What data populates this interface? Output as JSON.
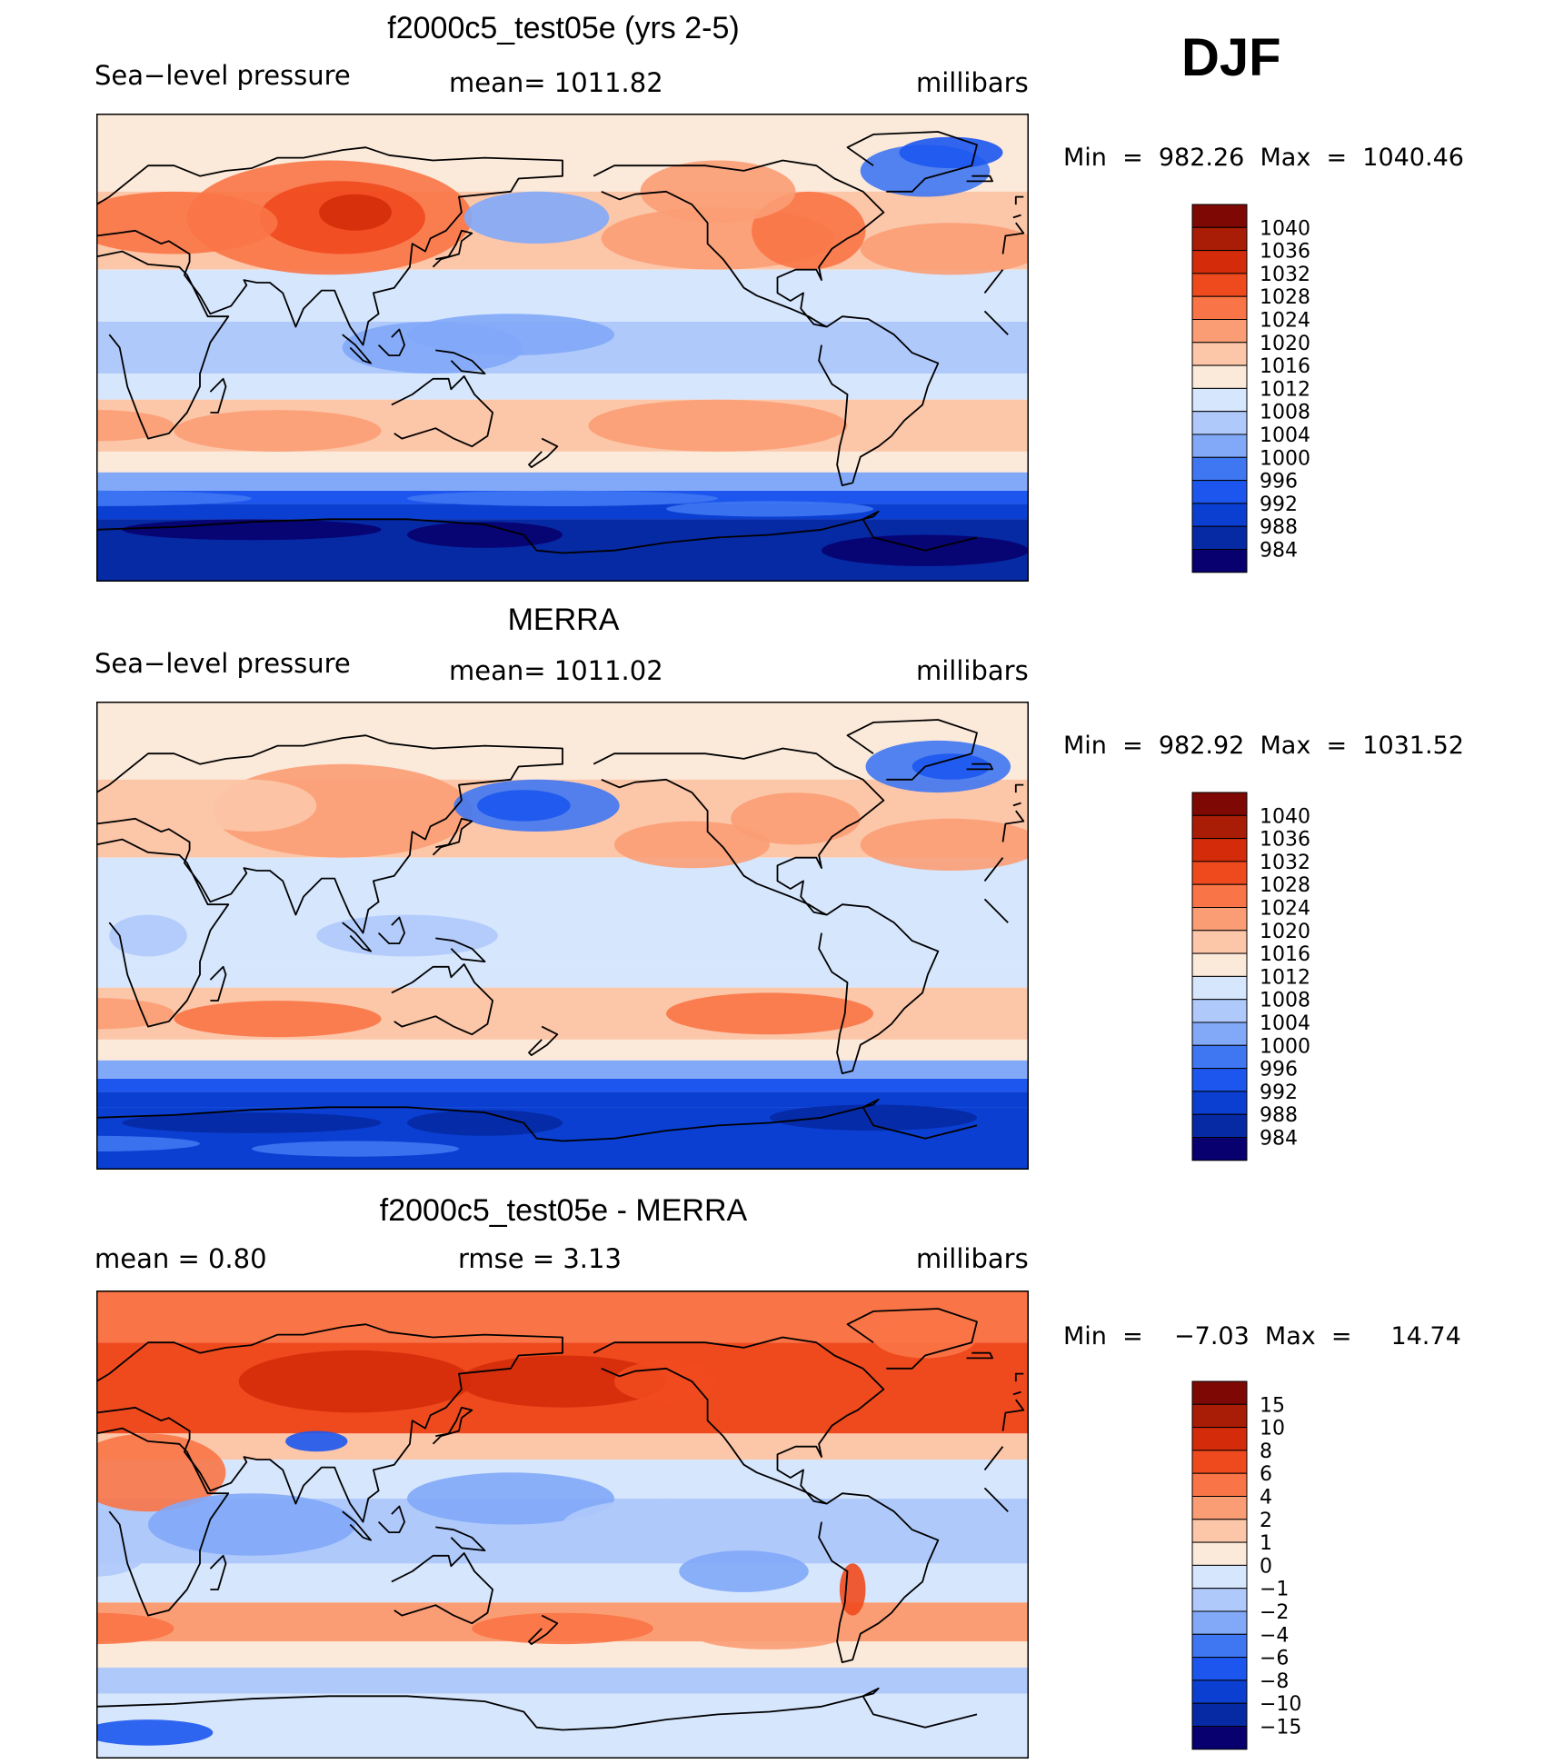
{
  "season": "DJF",
  "colorbar_palette": {
    "full": [
      "#08006e",
      "#0629a4",
      "#0a3fd2",
      "#1c56ee",
      "#3f77f2",
      "#82a8f8",
      "#afc9fb",
      "#d6e6fd",
      "#fbe9da",
      "#fcc6a8",
      "#fb9d74",
      "#f97446",
      "#ef4a1e",
      "#d42c0a",
      "#a91c06",
      "#7e0904"
    ],
    "diff": [
      "#08006e",
      "#0629a4",
      "#0a3fd2",
      "#1c56ee",
      "#3f77f2",
      "#82a8f8",
      "#afc9fb",
      "#d6e6fd",
      "#fbe9da",
      "#fcc6a8",
      "#fb9d74",
      "#f97446",
      "#ef4a1e",
      "#d42c0a",
      "#a91c06",
      "#7e0904"
    ]
  },
  "chart_data": [
    {
      "type": "heatmap",
      "title": "f2000c5_test05e (yrs 2-5)",
      "left_label": "Sea−level pressure",
      "center_label": "mean=  1011.82",
      "units": "millibars",
      "minmax": "Min  =  982.26  Max  =  1040.46",
      "colorbar": {
        "levels": [
          "1040",
          "1036",
          "1032",
          "1028",
          "1024",
          "1020",
          "1016",
          "1012",
          "1008",
          "1004",
          "1000",
          "996",
          "992",
          "988",
          "984"
        ]
      }
    },
    {
      "type": "heatmap",
      "title": "MERRA",
      "left_label": "Sea−level pressure",
      "center_label": "mean=  1011.02",
      "units": "millibars",
      "minmax": "Min  =  982.92  Max  =  1031.52",
      "colorbar": {
        "levels": [
          "1040",
          "1036",
          "1032",
          "1028",
          "1024",
          "1020",
          "1016",
          "1012",
          "1008",
          "1004",
          "1000",
          "996",
          "992",
          "988",
          "984"
        ]
      }
    },
    {
      "type": "heatmap",
      "title": "f2000c5_test05e - MERRA",
      "left_label": "mean  =      0.80",
      "center_label": "rmse  =      3.13",
      "units": "millibars",
      "minmax": "Min  =    −7.03  Max  =     14.74",
      "colorbar": {
        "levels": [
          "15",
          "10",
          "8",
          "6",
          "4",
          "2",
          "1",
          "0",
          "−1",
          "−2",
          "−4",
          "−6",
          "−8",
          "−10",
          "−15"
        ]
      }
    }
  ]
}
